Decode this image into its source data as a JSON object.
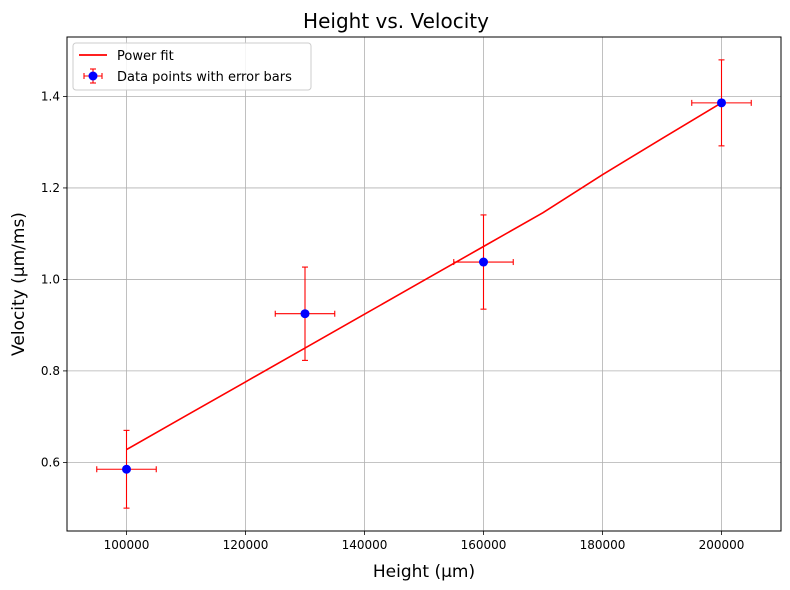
{
  "chart_data": {
    "type": "scatter",
    "title": "Height vs. Velocity",
    "xlabel": "Height (µm)",
    "ylabel": "Velocity (µm/ms)",
    "xlim": [
      90000,
      210000
    ],
    "ylim": [
      0.45,
      1.53
    ],
    "x_ticks": [
      100000,
      120000,
      140000,
      160000,
      180000,
      200000
    ],
    "x_tick_labels": [
      "100000",
      "120000",
      "140000",
      "160000",
      "180000",
      "200000"
    ],
    "y_ticks": [
      0.6,
      0.8,
      1.0,
      1.2,
      1.4
    ],
    "y_tick_labels": [
      "0.6",
      "0.8",
      "1.0",
      "1.2",
      "1.4"
    ],
    "grid": true,
    "legend_position": "top-left",
    "series": [
      {
        "name": "Power fit",
        "kind": "line",
        "color": "#ff0000",
        "x": [
          100000,
          110000,
          120000,
          130000,
          140000,
          150000,
          160000,
          170000,
          180000,
          190000,
          200000
        ],
        "y": [
          0.628,
          0.702,
          0.776,
          0.85,
          0.924,
          0.998,
          1.072,
          1.146,
          1.229,
          1.308,
          1.386
        ]
      },
      {
        "name": "Data points with error bars",
        "kind": "errorbar",
        "marker_color": "#0000ff",
        "error_color": "#ff0000",
        "x": [
          100000,
          130000,
          160000,
          200000
        ],
        "y": [
          0.585,
          0.925,
          1.038,
          1.386
        ],
        "xerr": [
          5000,
          5000,
          5000,
          5000
        ],
        "yerr": [
          0.085,
          0.102,
          0.103,
          0.094
        ]
      }
    ]
  }
}
